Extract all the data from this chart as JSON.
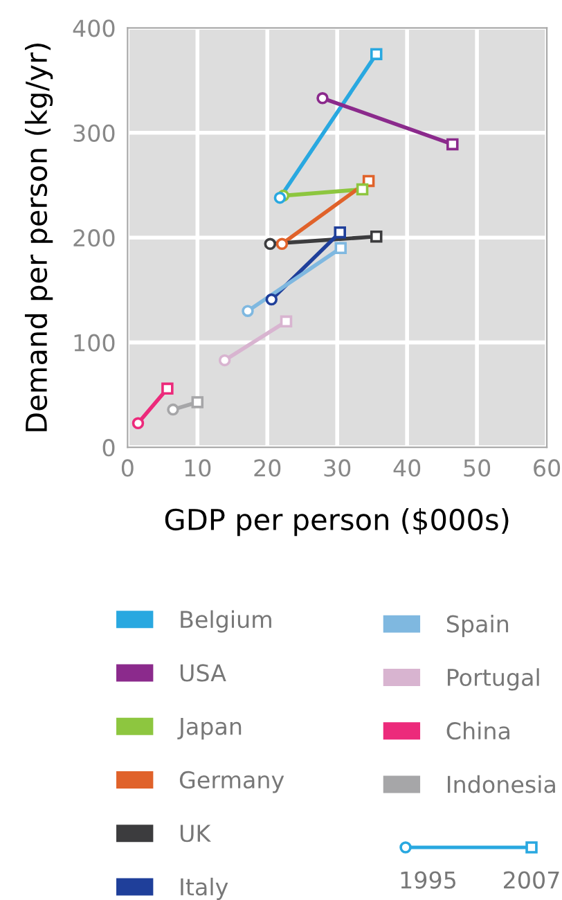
{
  "chart_data": {
    "type": "line",
    "xlabel": "GDP per person ($000s)",
    "ylabel": "Demand per person (kg/yr)",
    "xlim": [
      0,
      60
    ],
    "xticks": [
      0,
      10,
      20,
      30,
      40,
      50,
      60
    ],
    "ylim": [
      0,
      400
    ],
    "yticks": [
      0,
      100,
      200,
      300,
      400
    ],
    "grid": true,
    "legend": "bottom",
    "marker": [
      "circle",
      "square"
    ],
    "annotations": [
      "1995",
      "2007"
    ],
    "series": [
      {
        "name": "Belgium",
        "color": "#29a8e0",
        "x": [
          21.8,
          35.6
        ],
        "values": [
          238,
          375
        ]
      },
      {
        "name": "USA",
        "color": "#8b2a8c",
        "x": [
          27.9,
          46.5
        ],
        "values": [
          333,
          289
        ]
      },
      {
        "name": "Japan",
        "color": "#8dc63f",
        "x": [
          22.3,
          33.6
        ],
        "values": [
          240,
          246
        ]
      },
      {
        "name": "Germany",
        "color": "#e0622a",
        "x": [
          22.1,
          34.5
        ],
        "values": [
          194,
          254
        ]
      },
      {
        "name": "UK",
        "color": "#3c3c3e",
        "x": [
          20.4,
          35.6
        ],
        "values": [
          194,
          201
        ]
      },
      {
        "name": "Italy",
        "color": "#1f3f9a",
        "x": [
          20.6,
          30.4
        ],
        "values": [
          141,
          205
        ]
      },
      {
        "name": "Spain",
        "color": "#7fb8e0",
        "x": [
          17.2,
          30.5
        ],
        "values": [
          130,
          190
        ]
      },
      {
        "name": "Portugal",
        "color": "#d8b4d0",
        "x": [
          13.9,
          22.7
        ],
        "values": [
          83,
          120
        ]
      },
      {
        "name": "China",
        "color": "#ec2a7b",
        "x": [
          1.5,
          5.7
        ],
        "values": [
          23,
          56
        ]
      },
      {
        "name": "Indonesia",
        "color": "#a6a6a8",
        "x": [
          6.5,
          10.0
        ],
        "values": [
          36,
          43
        ]
      }
    ]
  }
}
